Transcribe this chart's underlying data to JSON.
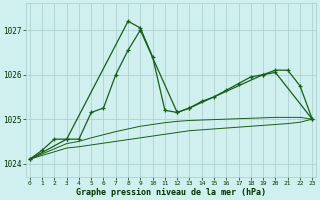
{
  "title": "Graphe pression niveau de la mer (hPa)",
  "bg_color": "#cff0ee",
  "grid_color": "#aacccc",
  "line_color": "#1a5c1a",
  "ylim": [
    1023.7,
    1027.6
  ],
  "yticks": [
    1024,
    1025,
    1026,
    1027
  ],
  "xlim": [
    -0.3,
    23.3
  ],
  "line1_x": [
    0,
    1,
    2,
    3,
    8,
    9,
    10,
    11,
    12,
    13,
    19,
    20,
    21,
    22,
    23
  ],
  "line1_y": [
    1024.1,
    1024.3,
    1024.55,
    1024.55,
    1027.2,
    1027.05,
    1026.4,
    1025.2,
    1025.15,
    1025.25,
    1026.0,
    1026.1,
    1026.1,
    1025.75,
    1025.0
  ],
  "line2_x": [
    0,
    3,
    4,
    5,
    6,
    7,
    8,
    9,
    12,
    13,
    14,
    15,
    16,
    17,
    18,
    19,
    20,
    23
  ],
  "line2_y": [
    1024.1,
    1024.55,
    1024.55,
    1025.15,
    1025.25,
    1026.0,
    1026.55,
    1027.0,
    1025.15,
    1025.25,
    1025.4,
    1025.5,
    1025.65,
    1025.8,
    1025.95,
    1026.0,
    1026.05,
    1025.0
  ],
  "line3_x": [
    0,
    3,
    4,
    5,
    6,
    7,
    8,
    9,
    10,
    11,
    12,
    13,
    14,
    15,
    16,
    17,
    18,
    19,
    20,
    21,
    22,
    23
  ],
  "line3_y": [
    1024.1,
    1024.45,
    1024.5,
    1024.58,
    1024.65,
    1024.72,
    1024.78,
    1024.84,
    1024.88,
    1024.92,
    1024.95,
    1024.97,
    1024.98,
    1024.99,
    1025.0,
    1025.01,
    1025.02,
    1025.03,
    1025.04,
    1025.04,
    1025.04,
    1025.0
  ],
  "line4_x": [
    0,
    3,
    4,
    5,
    6,
    7,
    8,
    9,
    10,
    11,
    12,
    13,
    14,
    15,
    16,
    17,
    18,
    19,
    20,
    21,
    22,
    23
  ],
  "line4_y": [
    1024.1,
    1024.35,
    1024.38,
    1024.42,
    1024.46,
    1024.5,
    1024.54,
    1024.58,
    1024.62,
    1024.66,
    1024.7,
    1024.74,
    1024.76,
    1024.78,
    1024.8,
    1024.82,
    1024.84,
    1024.86,
    1024.88,
    1024.9,
    1024.93,
    1025.0
  ]
}
